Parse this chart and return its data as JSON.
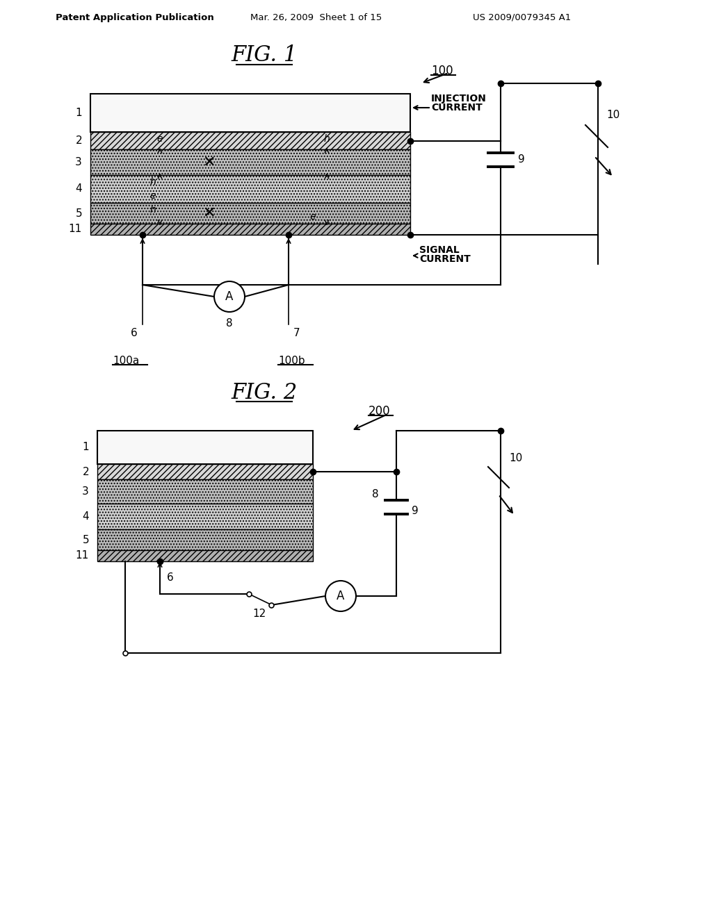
{
  "header_left": "Patent Application Publication",
  "header_mid": "Mar. 26, 2009  Sheet 1 of 15",
  "header_right": "US 2009/0079345 A1",
  "fig1_title": "FIG. 1",
  "fig2_title": "FIG. 2",
  "bg_color": "#ffffff",
  "line_color": "#000000"
}
